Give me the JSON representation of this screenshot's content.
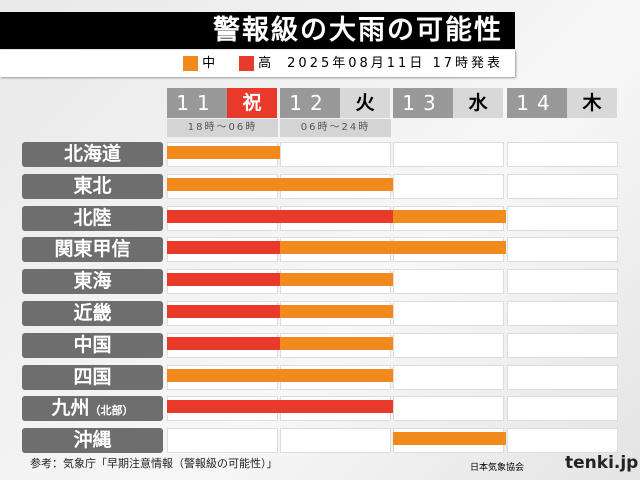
{
  "title": "警報級の大雨の可能性",
  "legend": [
    {
      "label": "中",
      "color": "#f08a1c"
    },
    {
      "label": "高",
      "color": "#e8392b"
    }
  ],
  "issued": "2025年08月11日 17時発表",
  "chart_data": {
    "type": "table",
    "title": "警報級の大雨の可能性",
    "columns": [
      {
        "day": "11",
        "weekday": "祝",
        "period": "18時〜06時"
      },
      {
        "day": "12",
        "weekday": "火",
        "period": "06時〜24時"
      },
      {
        "day": "13",
        "weekday": "水"
      },
      {
        "day": "14",
        "weekday": "木"
      }
    ],
    "rows": [
      {
        "region": "北海道",
        "values": [
          "中",
          "",
          "",
          ""
        ]
      },
      {
        "region": "東北",
        "values": [
          "中",
          "中",
          "",
          ""
        ]
      },
      {
        "region": "北陸",
        "values": [
          "高",
          "高",
          "中",
          ""
        ]
      },
      {
        "region": "関東甲信",
        "values": [
          "高",
          "中",
          "中",
          ""
        ]
      },
      {
        "region": "東海",
        "values": [
          "高",
          "中",
          "",
          ""
        ]
      },
      {
        "region": "近畿",
        "values": [
          "高",
          "中",
          "",
          ""
        ]
      },
      {
        "region": "中国",
        "values": [
          "高",
          "中",
          "",
          ""
        ]
      },
      {
        "region": "四国",
        "values": [
          "中",
          "中",
          "",
          ""
        ]
      },
      {
        "region": "九州",
        "sub": "（北部）",
        "values": [
          "高",
          "高",
          "",
          ""
        ]
      },
      {
        "region": "沖縄",
        "values": [
          "",
          "",
          "中",
          ""
        ]
      }
    ]
  },
  "footer": {
    "source": "参考：気象庁「早期注意情報（警報級の可能性）」",
    "org": "日本気象協会",
    "logo": "tenki.jp"
  }
}
